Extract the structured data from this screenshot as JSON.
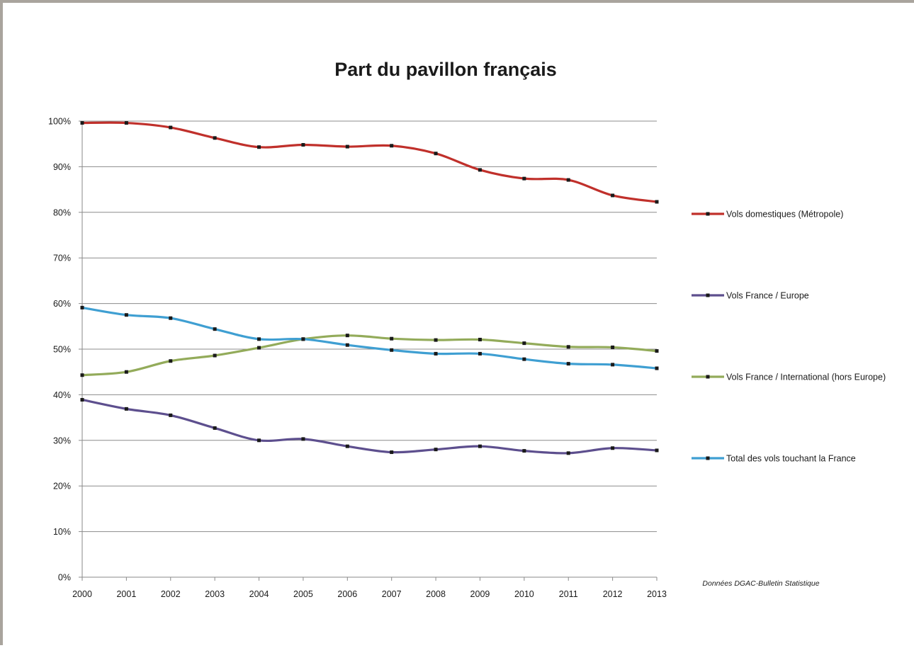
{
  "chart_data": {
    "type": "line",
    "title": "Part du pavillon français",
    "xlabel": "",
    "ylabel": "",
    "x": [
      "2000",
      "2001",
      "2002",
      "2003",
      "2004",
      "2005",
      "2006",
      "2007",
      "2008",
      "2009",
      "2010",
      "2011",
      "2012",
      "2013"
    ],
    "ylim": [
      0,
      100
    ],
    "yticks": [
      "0%",
      "10%",
      "20%",
      "30%",
      "40%",
      "50%",
      "60%",
      "70%",
      "80%",
      "90%",
      "100%"
    ],
    "grid": true,
    "legend_position": "right",
    "series": [
      {
        "name": "Vols domestiques (Métropole)",
        "color": "#c0302b",
        "values": [
          99.6,
          99.6,
          98.6,
          96.3,
          94.3,
          94.8,
          94.4,
          94.6,
          92.9,
          89.3,
          87.4,
          87.1,
          83.7,
          82.3
        ]
      },
      {
        "name": "Vols France / Europe",
        "color": "#5d4f8e",
        "values": [
          38.9,
          36.9,
          35.5,
          32.7,
          30.0,
          30.3,
          28.7,
          27.4,
          28.0,
          28.7,
          27.7,
          27.2,
          28.3,
          27.8
        ]
      },
      {
        "name": "Vols France / International (hors Europe)",
        "color": "#93ab5a",
        "values": [
          44.3,
          45.0,
          47.4,
          48.6,
          50.3,
          52.2,
          53.0,
          52.3,
          52.0,
          52.1,
          51.3,
          50.5,
          50.4,
          49.6
        ]
      },
      {
        "name": "Total des vols touchant la France",
        "color": "#3f9fd2",
        "values": [
          59.1,
          57.5,
          56.8,
          54.4,
          52.2,
          52.2,
          50.9,
          49.8,
          49.0,
          49.0,
          47.8,
          46.8,
          46.6,
          45.8
        ]
      }
    ],
    "annotation": "Données DGAC-Bulletin Statistique"
  }
}
